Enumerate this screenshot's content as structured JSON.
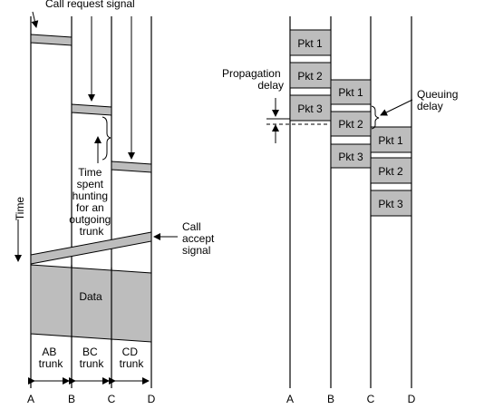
{
  "circuit_switching": {
    "call_request_label": "Call request signal",
    "time_label": "Time",
    "hunting_note": [
      "Time",
      "spent",
      "hunting",
      "for an",
      "outgoing",
      "trunk"
    ],
    "call_accept_label": [
      "Call",
      "accept",
      "signal"
    ],
    "data_label": "Data",
    "trunks": [
      {
        "lines": [
          "AB",
          "trunk"
        ]
      },
      {
        "lines": [
          "BC",
          "trunk"
        ]
      },
      {
        "lines": [
          "CD",
          "trunk"
        ]
      }
    ],
    "nodes": [
      "A",
      "B",
      "C",
      "D"
    ]
  },
  "packet_switching": {
    "propagation_label": [
      "Propagation",
      "delay"
    ],
    "queuing_label": [
      "Queuing",
      "delay"
    ],
    "packets": {
      "A": [
        "Pkt 1",
        "Pkt 2",
        "Pkt 3"
      ],
      "B": [
        "Pkt 1",
        "Pkt 2",
        "Pkt 3"
      ],
      "C": [
        "Pkt 1",
        "Pkt 2",
        "Pkt 3"
      ]
    },
    "nodes": [
      "A",
      "B",
      "C",
      "D"
    ]
  },
  "colors": {
    "box_fill": "#bdbdbd",
    "stroke": "#000000"
  }
}
